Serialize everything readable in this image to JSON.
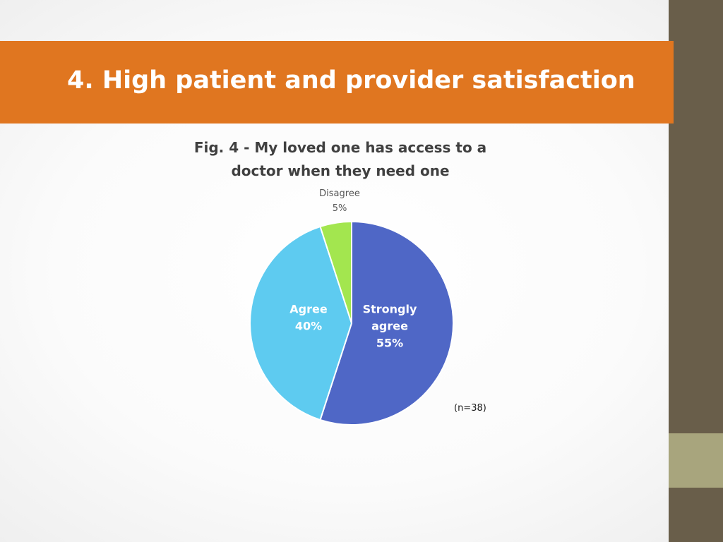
{
  "slide": {
    "title": "4. High patient and provider satisfaction"
  },
  "colors": {
    "banner": "#e07620",
    "side_strip": "#695e4a",
    "side_accent": "#a8a57d"
  },
  "chart_data": {
    "type": "pie",
    "title_lines": [
      "Fig. 4 - My loved one has access to a",
      "doctor when they need one"
    ],
    "slices": [
      {
        "label_lines": [
          "Strongly",
          "agree"
        ],
        "value": 55,
        "value_label": "55%",
        "color": "#4f67c6"
      },
      {
        "label_lines": [
          "Agree"
        ],
        "value": 40,
        "value_label": "40%",
        "color": "#5ecbf0"
      },
      {
        "label_lines": [
          "Disagree"
        ],
        "value": 5,
        "value_label": "5%",
        "color": "#a3e64f"
      }
    ],
    "note": "(n=38)"
  }
}
